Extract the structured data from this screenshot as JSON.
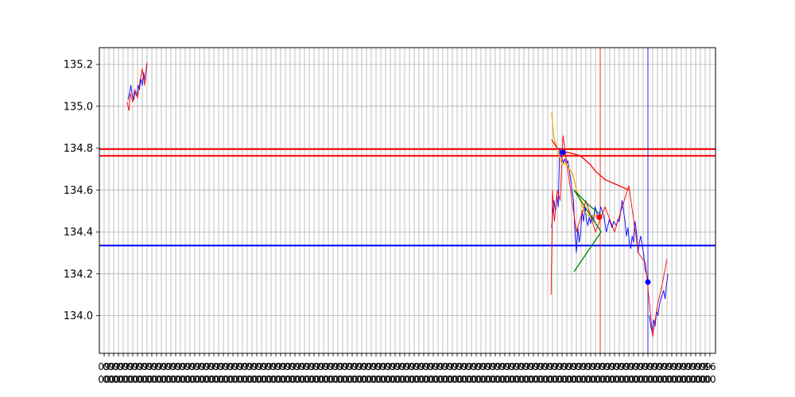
{
  "chart_data": {
    "type": "line",
    "title": "",
    "xlabel": "",
    "ylabel": "",
    "ylim": [
      133.82,
      135.28
    ],
    "yticks": [
      "134.0",
      "134.2",
      "134.4",
      "134.6",
      "134.8",
      "135.0",
      "135.2"
    ],
    "grid": true,
    "x_tick_count": 128,
    "x_tick_label_text": [
      "09",
      "00",
      "16",
      "00"
    ],
    "horizontal_lines": [
      {
        "y": 134.795,
        "color": "#ff0000"
      },
      {
        "y": 134.763,
        "color": "#ff0000"
      },
      {
        "y": 134.335,
        "color": "#0000ff"
      }
    ],
    "vertical_lines": [
      {
        "x": 104,
        "color": "#ff0000"
      },
      {
        "x": 114,
        "color": "#0000ff"
      }
    ],
    "series": [
      {
        "color": "#0000ff",
        "segments": [
          {
            "x": [
              5,
              5.3,
              5.6,
              5.9,
              6.2,
              6.5,
              6.8,
              7.1,
              7.4,
              7.7,
              8,
              8.3,
              8.6,
              8.9
            ],
            "y": [
              135.03,
              135.06,
              135.1,
              135.05,
              135.03,
              135.07,
              135.05,
              135.1,
              135.08,
              135.13,
              135.1,
              135.16,
              135.12,
              135.2
            ]
          },
          {
            "x": [
              93.8,
              94,
              94.3,
              94.6,
              94.9,
              95.2,
              95.5,
              95.8,
              96,
              96.3,
              96.6,
              96.9,
              97.2,
              97.5,
              97.8,
              98.1,
              98.4,
              98.7,
              99,
              99.3,
              99.6,
              99.9,
              100.2,
              100.5,
              100.8,
              101.1,
              101.4,
              101.7,
              102,
              102.3,
              102.6,
              102.9,
              103.2,
              103.5,
              103.8,
              104.1,
              104.4,
              104.7,
              105,
              105.3,
              105.6,
              105.9,
              106.2,
              106.5,
              106.8,
              107.1,
              107.4,
              107.7,
              108,
              108.3,
              108.6,
              108.9,
              109.2,
              109.5,
              109.8,
              110.1,
              110.4,
              110.7,
              111,
              111.3,
              111.6,
              111.9,
              112.2,
              112.5,
              112.8,
              113.1,
              113.4,
              113.7,
              114
            ],
            "y": [
              134.42,
              134.48,
              134.55,
              134.5,
              134.58,
              134.52,
              134.8,
              134.76,
              134.75,
              134.73,
              134.75,
              134.72,
              134.74,
              134.7,
              134.65,
              134.6,
              134.55,
              134.4,
              134.3,
              134.42,
              134.35,
              134.4,
              134.5,
              134.45,
              134.52,
              134.46,
              134.43,
              134.47,
              134.44,
              134.48,
              134.45,
              134.52,
              134.5,
              134.46,
              134.48,
              134.52,
              134.5,
              134.48,
              134.44,
              134.4,
              134.43,
              134.46,
              134.44,
              134.42,
              134.45,
              134.44,
              134.43,
              134.46,
              134.45,
              134.5,
              134.55,
              134.5,
              134.45,
              134.38,
              134.42,
              134.35,
              134.32,
              134.38,
              134.35,
              134.45,
              134.4,
              134.3,
              134.35,
              134.38,
              134.33,
              134.3,
              134.22,
              134.2,
              134.16
            ]
          },
          {
            "x": [
              114.3,
              114.6,
              114.9,
              115.2,
              115.5,
              115.8,
              116.1,
              116.4,
              116.7,
              117,
              117.3,
              117.6,
              117.9,
              118.2
            ],
            "y": [
              134.0,
              133.95,
              133.92,
              133.98,
              133.95,
              134.02,
              134.0,
              134.05,
              134.08,
              134.1,
              134.12,
              134.08,
              134.15,
              134.2
            ]
          }
        ]
      },
      {
        "color": "#ff0000",
        "segments": [
          {
            "x": [
              4.8,
              5.2,
              5.5,
              6,
              6.4,
              7,
              7.5,
              8,
              8.5,
              9
            ],
            "y": [
              135.02,
              134.98,
              135.06,
              135.02,
              135.08,
              135.04,
              135.12,
              135.18,
              135.1,
              135.21
            ]
          },
          {
            "x": [
              93.7,
              94,
              94.4,
              95,
              95.6,
              96.2,
              99,
              101,
              103,
              105,
              107,
              110,
              112,
              113.5,
              115,
              116,
              117,
              118
            ],
            "y": [
              134.1,
              134.6,
              134.45,
              134.6,
              134.55,
              134.86,
              134.4,
              134.55,
              134.4,
              134.52,
              134.4,
              134.62,
              134.3,
              134.25,
              133.9,
              134.05,
              134.15,
              134.27
            ]
          }
        ]
      }
    ],
    "overlays": [
      {
        "color": "#ffa500",
        "x": [
          93.8,
          94.3,
          95.2,
          96,
          96.8,
          97.5,
          98.2,
          99,
          99.8,
          100.6,
          101.4,
          102.2,
          103,
          103.8,
          104.5
        ],
        "y": [
          134.97,
          134.85,
          134.78,
          134.72,
          134.73,
          134.7,
          134.68,
          134.6,
          134.55,
          134.5,
          134.48,
          134.47,
          134.48,
          134.46,
          134.47
        ]
      },
      {
        "color": "#ff0000",
        "x": [
          93.8,
          95,
          96,
          97,
          98,
          99,
          100,
          101,
          102,
          103,
          104,
          105,
          106,
          107,
          108,
          109,
          110
        ],
        "y": [
          134.84,
          134.8,
          134.78,
          134.78,
          134.775,
          134.77,
          134.76,
          134.74,
          134.72,
          134.69,
          134.67,
          134.65,
          134.64,
          134.63,
          134.62,
          134.61,
          134.6
        ]
      },
      {
        "color": "#008000",
        "x": [
          98.5,
          101.5,
          104.2
        ],
        "y": [
          134.6,
          134.53,
          134.48
        ]
      },
      {
        "color": "#008000",
        "x": [
          98.5,
          101.5,
          104.2
        ],
        "y": [
          134.21,
          134.31,
          134.4
        ]
      },
      {
        "color": "#008000",
        "x": [
          98.5,
          104.2
        ],
        "y": [
          134.6,
          134.4
        ]
      }
    ],
    "markers": [
      {
        "x": 96.2,
        "y": 134.78,
        "color": "#0000ff"
      },
      {
        "x": 103.8,
        "y": 134.47,
        "color": "#ff0000"
      },
      {
        "x": 114,
        "y": 134.16,
        "color": "#0000ff"
      }
    ]
  }
}
